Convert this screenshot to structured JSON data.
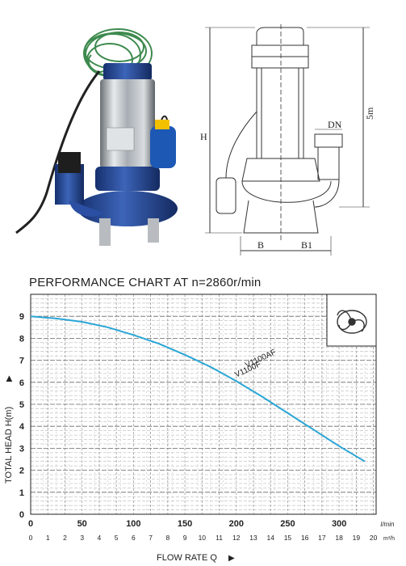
{
  "drawing": {
    "label_h": "H",
    "label_5m": "5m",
    "label_dn": "DN",
    "label_b": "B",
    "label_b1": "B1"
  },
  "chart_data": {
    "type": "line",
    "title": "PERFORMANCE CHART AT n=2860r/min",
    "xlabel": "FLOW RATE Q",
    "ylabel": "TOTAL HEAD H(m)",
    "x_lmin_ticks": [
      0,
      50,
      100,
      150,
      200,
      250,
      300
    ],
    "x_lmin_unit": "l/min",
    "x_m3h_ticks": [
      0,
      1,
      2,
      3,
      4,
      5,
      6,
      7,
      8,
      9,
      10,
      11,
      12,
      13,
      14,
      15,
      16,
      17,
      18,
      19,
      20
    ],
    "x_m3h_unit": "m³/h",
    "y_ticks": [
      0,
      1,
      2,
      3,
      4,
      5,
      6,
      7,
      8,
      9
    ],
    "xlim": [
      0,
      336
    ],
    "ylim": [
      0,
      10
    ],
    "series": [
      {
        "name": "V1100AF",
        "color": "#2aa6d6",
        "x": [
          0,
          25,
          50,
          75,
          100,
          125,
          150,
          175,
          200,
          225,
          250,
          275,
          300,
          325
        ],
        "y": [
          9.0,
          8.9,
          8.75,
          8.5,
          8.15,
          7.75,
          7.25,
          6.7,
          6.05,
          5.35,
          4.6,
          3.85,
          3.1,
          2.4
        ]
      }
    ],
    "series_labels": [
      "V1100AF",
      "V1100F"
    ],
    "grid": true
  }
}
